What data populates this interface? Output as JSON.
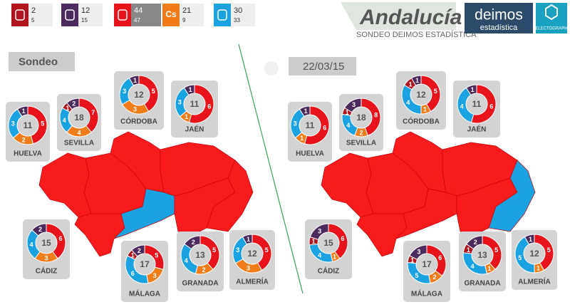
{
  "legend": [
    {
      "color": "#b2141f",
      "values": [
        2,
        5
      ]
    },
    {
      "color": "#4b2a5c",
      "values": [
        12,
        15
      ]
    },
    {
      "color": "#e8141b",
      "values": [
        44,
        47
      ]
    },
    {
      "color": "#f07d1a",
      "label": "Cs",
      "values": [
        21,
        9
      ]
    },
    {
      "color": "#1aa3e0",
      "values": [
        30,
        33
      ]
    }
  ],
  "header": {
    "brand": "Andalucía",
    "subtitle": "SONDEO DEIMOS ESTADÍSTICA",
    "logo1": "deimos",
    "logo1_sub": "estadística",
    "logo2": "ELECTOGRAPH"
  },
  "segment_colors": [
    "#e8141b",
    "#f07d1a",
    "#1aa3e0",
    "#b2141f",
    "#4b2a5c"
  ],
  "panels": [
    {
      "title": "Sondeo",
      "provinces": [
        {
          "name": "HUELVA",
          "total": 11,
          "seats": [
            5,
            2,
            3,
            0,
            1
          ],
          "color": "#f81b1b"
        },
        {
          "name": "SEVILLA",
          "total": 18,
          "seats": [
            7,
            4,
            4,
            1,
            2
          ],
          "color": "#f81b1b"
        },
        {
          "name": "CÓRDOBA",
          "total": 12,
          "seats": [
            5,
            3,
            3,
            0,
            1
          ],
          "color": "#f81b1b"
        },
        {
          "name": "JAÉN",
          "total": 11,
          "seats": [
            6,
            1,
            3,
            0,
            1
          ],
          "color": "#f81b1b"
        },
        {
          "name": "CÁDIZ",
          "total": 15,
          "seats": [
            6,
            3,
            4,
            0,
            2
          ],
          "color": "#f81b1b"
        },
        {
          "name": "MÁLAGA",
          "total": 17,
          "seats": [
            5,
            3,
            6,
            1,
            2
          ],
          "color": "#1aa3e0"
        },
        {
          "name": "GRANADA",
          "total": 13,
          "seats": [
            5,
            2,
            4,
            0,
            2
          ],
          "color": "#f81b1b"
        },
        {
          "name": "ALMERÍA",
          "total": 12,
          "seats": [
            5,
            3,
            3,
            0,
            1
          ],
          "color": "#f81b1b"
        }
      ]
    },
    {
      "title": "22/03/15",
      "provinces": [
        {
          "name": "HUELVA",
          "total": 11,
          "seats": [
            6,
            1,
            3,
            0,
            1
          ],
          "color": "#f81b1b"
        },
        {
          "name": "SEVILLA",
          "total": 18,
          "seats": [
            8,
            2,
            4,
            1,
            3
          ],
          "color": "#f81b1b"
        },
        {
          "name": "CÓRDOBA",
          "total": 12,
          "seats": [
            5,
            1,
            4,
            1,
            1
          ],
          "color": "#f81b1b"
        },
        {
          "name": "JAÉN",
          "total": 11,
          "seats": [
            6,
            0,
            4,
            0,
            1
          ],
          "color": "#f81b1b"
        },
        {
          "name": "CÁDIZ",
          "total": 15,
          "seats": [
            6,
            1,
            4,
            1,
            3
          ],
          "color": "#f81b1b"
        },
        {
          "name": "MÁLAGA",
          "total": 17,
          "seats": [
            6,
            2,
            5,
            1,
            3
          ],
          "color": "#f81b1b"
        },
        {
          "name": "GRANADA",
          "total": 13,
          "seats": [
            5,
            1,
            4,
            1,
            2
          ],
          "color": "#f81b1b"
        },
        {
          "name": "ALMERÍA",
          "total": 12,
          "seats": [
            5,
            1,
            5,
            0,
            1
          ],
          "color": "#1aa3e0"
        }
      ]
    }
  ]
}
